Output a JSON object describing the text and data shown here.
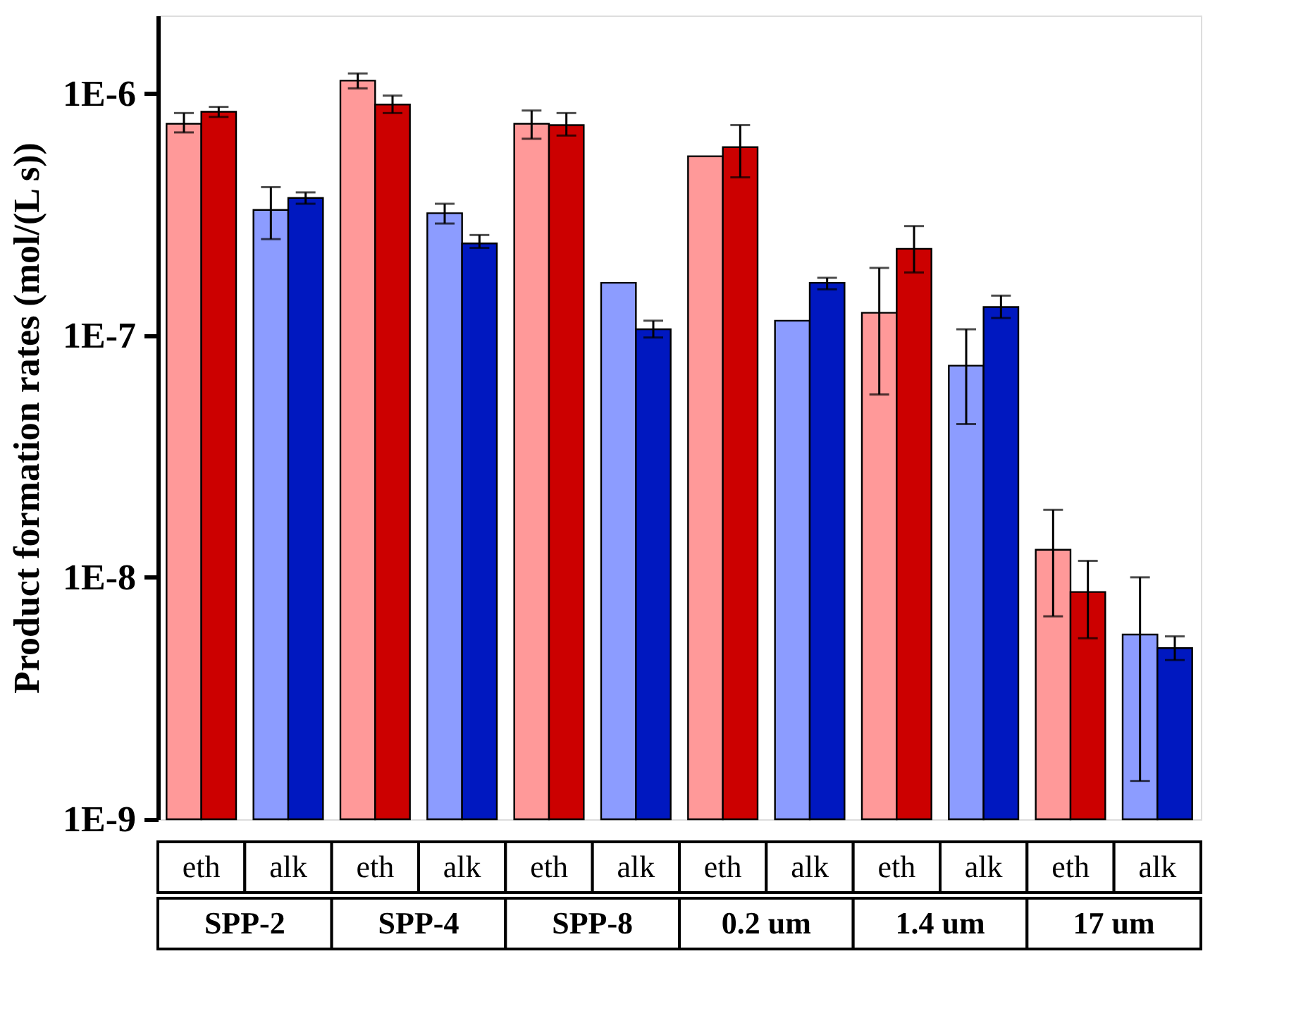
{
  "chart_data": {
    "type": "bar",
    "ylabel": "Product formation rates (mol/(L s))",
    "categories": [
      "eth",
      "alk",
      "eth",
      "alk",
      "eth",
      "alk",
      "eth",
      "alk",
      "eth",
      "alk",
      "eth",
      "alk"
    ],
    "annotations": [
      "SPP-2",
      "SPP-4",
      "SPP-8",
      "0.2 um",
      "1.4 um",
      "17 um"
    ],
    "log": true,
    "ylim": [
      1e-09,
      2.1e-06
    ],
    "yticks": [
      {
        "value": 1e-09,
        "label": "1E-9"
      },
      {
        "value": 1e-08,
        "label": "1E-8"
      },
      {
        "value": 1e-07,
        "label": "1E-7"
      },
      {
        "value": 1e-06,
        "label": "1E-6"
      }
    ],
    "grid": false,
    "series": [
      {
        "colors": [
          "#ff9999",
          "#8c9cff",
          "#ff9999",
          "#8c9cff",
          "#ff9999",
          "#8c9cff",
          "#ff9999",
          "#8c9cff",
          "#ff9999",
          "#8c9cff",
          "#ff9999",
          "#8c9cff"
        ],
        "values": [
          7.5e-07,
          3.3e-07,
          1.13e-06,
          3.2e-07,
          7.5e-07,
          1.65e-07,
          5.5e-07,
          1.15e-07,
          1.24e-07,
          7.5e-08,
          1.3e-08,
          5.8e-09
        ],
        "errors": [
          [
            6.9e-07,
            8.3e-07
          ],
          [
            2.5e-07,
            4.1e-07
          ],
          [
            1.05e-06,
            1.21e-06
          ],
          [
            2.9e-07,
            3.5e-07
          ],
          [
            6.5e-07,
            8.5e-07
          ],
          null,
          null,
          null,
          [
            5.7e-08,
            1.9e-07
          ],
          [
            4.3e-08,
            1.06e-07
          ],
          [
            6.9e-09,
            1.9e-08
          ],
          [
            1.44e-09,
            1e-08
          ]
        ]
      },
      {
        "colors": [
          "#cc0000",
          "#0018c0",
          "#cc0000",
          "#0018c0",
          "#cc0000",
          "#0018c0",
          "#cc0000",
          "#0018c0",
          "#cc0000",
          "#0018c0",
          "#cc0000",
          "#0018c0"
        ],
        "values": [
          8.4e-07,
          3.7e-07,
          9e-07,
          2.4e-07,
          7.4e-07,
          1.06e-07,
          6e-07,
          1.65e-07,
          2.28e-07,
          1.31e-07,
          8.7e-09,
          5.1e-09
        ],
        "errors": [
          [
            8e-07,
            8.8e-07
          ],
          [
            3.5e-07,
            3.9e-07
          ],
          [
            8.3e-07,
            9.8e-07
          ],
          [
            2.3e-07,
            2.6e-07
          ],
          [
            6.7e-07,
            8.3e-07
          ],
          [
            9.8e-08,
            1.15e-07
          ],
          [
            4.5e-07,
            7.4e-07
          ],
          [
            1.55e-07,
            1.73e-07
          ],
          [
            1.82e-07,
            2.83e-07
          ],
          [
            1.18e-07,
            1.46e-07
          ],
          [
            5.6e-09,
            1.17e-08
          ],
          [
            4.55e-09,
            5.7e-09
          ]
        ]
      }
    ]
  }
}
